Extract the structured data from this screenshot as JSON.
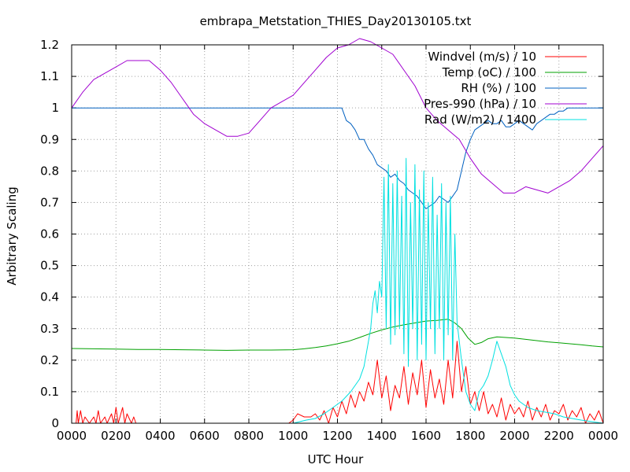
{
  "chart_data": {
    "type": "line",
    "title": "embrapa_Metstation_THIES_Day20130105.txt",
    "xlabel": "UTC Hour",
    "ylabel": "Arbitrary Scaling",
    "xlim": [
      0,
      24
    ],
    "ylim": [
      0,
      1.2
    ],
    "xticks": [
      {
        "v": 0,
        "label": "0000"
      },
      {
        "v": 2,
        "label": "0200"
      },
      {
        "v": 4,
        "label": "0400"
      },
      {
        "v": 6,
        "label": "0600"
      },
      {
        "v": 8,
        "label": "0800"
      },
      {
        "v": 10,
        "label": "1000"
      },
      {
        "v": 12,
        "label": "1200"
      },
      {
        "v": 14,
        "label": "1400"
      },
      {
        "v": 16,
        "label": "1600"
      },
      {
        "v": 18,
        "label": "1800"
      },
      {
        "v": 20,
        "label": "2000"
      },
      {
        "v": 22,
        "label": "2200"
      },
      {
        "v": 24,
        "label": "0000"
      }
    ],
    "yticks": [
      {
        "v": 0,
        "label": "0"
      },
      {
        "v": 0.1,
        "label": "0.1"
      },
      {
        "v": 0.2,
        "label": "0.2"
      },
      {
        "v": 0.3,
        "label": "0.3"
      },
      {
        "v": 0.4,
        "label": "0.4"
      },
      {
        "v": 0.5,
        "label": "0.5"
      },
      {
        "v": 0.6,
        "label": "0.6"
      },
      {
        "v": 0.7,
        "label": "0.7"
      },
      {
        "v": 0.8,
        "label": "0.8"
      },
      {
        "v": 0.9,
        "label": "0.9"
      },
      {
        "v": 1.0,
        "label": "1"
      },
      {
        "v": 1.1,
        "label": "1.1"
      },
      {
        "v": 1.2,
        "label": "1.2"
      }
    ],
    "grid": true,
    "legend_position": "top-right",
    "series": [
      {
        "name": "Windvel (m/s) / 10",
        "color": "#ff0000",
        "x": [
          0,
          0.2,
          0.25,
          0.3,
          0.4,
          0.5,
          0.6,
          0.8,
          1.0,
          1.1,
          1.2,
          1.3,
          1.5,
          1.6,
          1.8,
          1.9,
          2.0,
          2.1,
          2.3,
          2.4,
          2.5,
          2.7,
          2.8,
          2.9,
          3.0,
          9.8,
          10.0,
          10.2,
          10.5,
          10.8,
          11.0,
          11.2,
          11.4,
          11.6,
          11.8,
          12.0,
          12.2,
          12.4,
          12.6,
          12.8,
          13.0,
          13.2,
          13.4,
          13.6,
          13.8,
          14.0,
          14.2,
          14.4,
          14.6,
          14.8,
          15.0,
          15.2,
          15.4,
          15.6,
          15.8,
          16.0,
          16.2,
          16.4,
          16.6,
          16.8,
          17.0,
          17.2,
          17.4,
          17.6,
          17.8,
          18.0,
          18.2,
          18.4,
          18.6,
          18.8,
          19.0,
          19.2,
          19.4,
          19.6,
          19.8,
          20.0,
          20.2,
          20.4,
          20.6,
          20.8,
          21.0,
          21.2,
          21.4,
          21.6,
          21.8,
          22.0,
          22.2,
          22.4,
          22.6,
          22.8,
          23.0,
          23.2,
          23.4,
          23.6,
          23.8,
          24.0
        ],
        "y": [
          0,
          0,
          0.04,
          0,
          0.04,
          0,
          0.02,
          0,
          0.02,
          0,
          0.04,
          0,
          0.02,
          0,
          0.03,
          0,
          0.05,
          0,
          0.05,
          0,
          0.03,
          0,
          0.02,
          0,
          0,
          0,
          0.01,
          0.03,
          0.02,
          0.02,
          0.03,
          0.01,
          0.04,
          0,
          0.05,
          0.02,
          0.07,
          0.03,
          0.09,
          0.05,
          0.1,
          0.07,
          0.13,
          0.09,
          0.2,
          0.08,
          0.15,
          0.04,
          0.12,
          0.08,
          0.18,
          0.06,
          0.16,
          0.09,
          0.2,
          0.05,
          0.17,
          0.08,
          0.14,
          0.06,
          0.2,
          0.08,
          0.26,
          0.1,
          0.18,
          0.06,
          0.1,
          0.04,
          0.1,
          0.03,
          0.06,
          0.02,
          0.08,
          0.01,
          0.06,
          0.03,
          0.05,
          0.02,
          0.07,
          0.01,
          0.05,
          0.02,
          0.06,
          0.01,
          0.04,
          0.03,
          0.06,
          0.01,
          0.04,
          0.02,
          0.05,
          0,
          0.03,
          0.01,
          0.04,
          0
        ]
      },
      {
        "name": "Temp (oC) / 100",
        "color": "#00a000",
        "x": [
          0,
          1,
          2,
          3,
          4,
          5,
          6,
          7,
          8,
          9,
          10,
          10.5,
          11,
          11.5,
          12,
          12.5,
          13,
          13.5,
          14,
          14.5,
          15,
          15.5,
          16,
          16.5,
          17,
          17.3,
          17.6,
          17.9,
          18.2,
          18.5,
          18.8,
          19.2,
          19.6,
          20,
          20.5,
          21,
          21.5,
          22,
          22.5,
          23,
          23.5,
          24
        ],
        "y": [
          0.237,
          0.236,
          0.235,
          0.234,
          0.234,
          0.233,
          0.232,
          0.231,
          0.232,
          0.232,
          0.233,
          0.236,
          0.24,
          0.245,
          0.252,
          0.26,
          0.272,
          0.285,
          0.296,
          0.305,
          0.312,
          0.318,
          0.324,
          0.326,
          0.33,
          0.318,
          0.3,
          0.27,
          0.25,
          0.256,
          0.268,
          0.274,
          0.272,
          0.27,
          0.266,
          0.262,
          0.258,
          0.255,
          0.252,
          0.249,
          0.245,
          0.242
        ]
      },
      {
        "name": "RH (%) / 100",
        "color": "#0060c0",
        "x": [
          0,
          3,
          6,
          9,
          12.2,
          12.4,
          12.6,
          12.8,
          13.0,
          13.2,
          13.4,
          13.6,
          13.8,
          14.0,
          14.2,
          14.4,
          14.6,
          14.8,
          15.0,
          15.2,
          15.4,
          15.6,
          15.8,
          16.0,
          16.2,
          16.4,
          16.6,
          16.8,
          17.0,
          17.2,
          17.4,
          17.6,
          17.8,
          18.0,
          18.2,
          18.4,
          18.6,
          18.8,
          19.0,
          19.2,
          19.4,
          19.6,
          19.8,
          20.0,
          20.2,
          20.4,
          20.6,
          20.8,
          21.0,
          21.2,
          21.4,
          21.6,
          21.8,
          22.0,
          22.2,
          22.4,
          22.6,
          22.8,
          23.0,
          24.0
        ],
        "y": [
          1.0,
          1.0,
          1.0,
          1.0,
          1.0,
          0.96,
          0.95,
          0.93,
          0.9,
          0.9,
          0.87,
          0.85,
          0.82,
          0.81,
          0.8,
          0.78,
          0.79,
          0.77,
          0.76,
          0.74,
          0.73,
          0.72,
          0.7,
          0.68,
          0.69,
          0.7,
          0.72,
          0.71,
          0.7,
          0.72,
          0.74,
          0.8,
          0.86,
          0.9,
          0.93,
          0.94,
          0.95,
          0.96,
          0.95,
          0.95,
          0.96,
          0.94,
          0.94,
          0.95,
          0.96,
          0.95,
          0.94,
          0.93,
          0.95,
          0.96,
          0.97,
          0.98,
          0.98,
          0.99,
          0.99,
          1.0,
          1.0,
          1.0,
          1.0,
          1.0
        ]
      },
      {
        "name": "Pres-990 (hPa) / 10",
        "color": "#a000d0",
        "x": [
          0,
          0.5,
          1,
          1.5,
          2,
          2.5,
          3,
          3.5,
          4,
          4.5,
          5,
          5.5,
          6,
          6.5,
          7,
          7.5,
          8,
          8.5,
          9,
          9.5,
          10,
          10.5,
          11,
          11.5,
          12,
          12.5,
          13,
          13.5,
          14,
          14.5,
          15,
          15.5,
          16,
          16.5,
          17,
          17.5,
          18,
          18.5,
          19,
          19.5,
          20,
          20.5,
          21,
          21.5,
          22,
          22.5,
          23,
          23.5,
          24
        ],
        "y": [
          1.0,
          1.05,
          1.09,
          1.11,
          1.13,
          1.15,
          1.15,
          1.15,
          1.12,
          1.08,
          1.03,
          0.98,
          0.95,
          0.93,
          0.91,
          0.91,
          0.92,
          0.96,
          1.0,
          1.02,
          1.04,
          1.08,
          1.12,
          1.16,
          1.19,
          1.2,
          1.22,
          1.21,
          1.19,
          1.17,
          1.12,
          1.07,
          1.0,
          0.96,
          0.93,
          0.9,
          0.84,
          0.79,
          0.76,
          0.73,
          0.73,
          0.75,
          0.74,
          0.73,
          0.75,
          0.77,
          0.8,
          0.84,
          0.88
        ]
      },
      {
        "name": "Rad (W/m2) / 1400",
        "color": "#00e0e0",
        "x": [
          0,
          10,
          10.3,
          10.6,
          11,
          11.4,
          11.8,
          12.2,
          12.6,
          13.0,
          13.2,
          13.4,
          13.5,
          13.6,
          13.7,
          13.8,
          13.9,
          14.0,
          14.1,
          14.2,
          14.3,
          14.4,
          14.5,
          14.6,
          14.7,
          14.8,
          14.9,
          15.0,
          15.1,
          15.2,
          15.3,
          15.4,
          15.5,
          15.6,
          15.7,
          15.8,
          15.9,
          16.0,
          16.1,
          16.2,
          16.3,
          16.4,
          16.5,
          16.6,
          16.7,
          16.8,
          16.9,
          17.0,
          17.1,
          17.2,
          17.3,
          17.4,
          17.6,
          17.8,
          18.0,
          18.2,
          18.4,
          18.6,
          18.8,
          19.0,
          19.2,
          19.4,
          19.6,
          19.8,
          20.0,
          20.2,
          20.4,
          20.6,
          20.8,
          21.0,
          21.4,
          21.8,
          22.2,
          22.6,
          23.0,
          24.0
        ],
        "y": [
          0,
          0,
          0.005,
          0.01,
          0.015,
          0.03,
          0.05,
          0.07,
          0.1,
          0.14,
          0.18,
          0.26,
          0.3,
          0.38,
          0.42,
          0.35,
          0.45,
          0.4,
          0.78,
          0.3,
          0.82,
          0.25,
          0.76,
          0.28,
          0.8,
          0.3,
          0.72,
          0.22,
          0.84,
          0.18,
          0.7,
          0.3,
          0.82,
          0.2,
          0.74,
          0.25,
          0.8,
          0.2,
          0.7,
          0.3,
          0.78,
          0.22,
          0.66,
          0.3,
          0.76,
          0.2,
          0.7,
          0.28,
          0.72,
          0.2,
          0.6,
          0.32,
          0.2,
          0.1,
          0.06,
          0.04,
          0.1,
          0.12,
          0.15,
          0.2,
          0.26,
          0.22,
          0.18,
          0.12,
          0.09,
          0.07,
          0.06,
          0.05,
          0.045,
          0.04,
          0.035,
          0.03,
          0.02,
          0.015,
          0.01,
          0
        ]
      }
    ]
  }
}
